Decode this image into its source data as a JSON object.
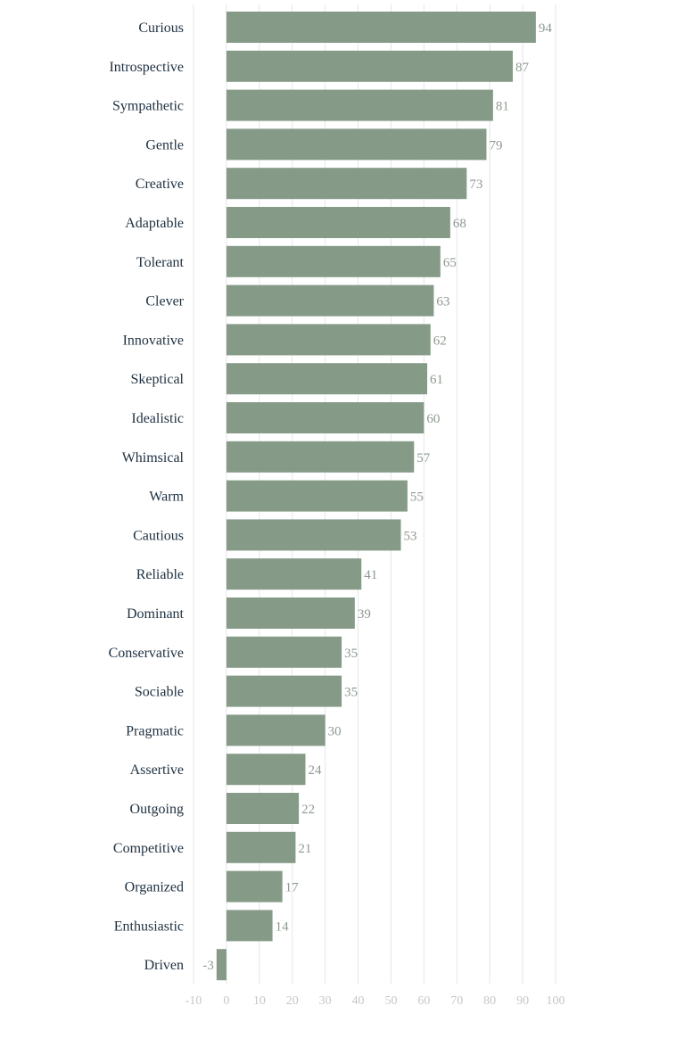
{
  "chart_data": {
    "type": "bar",
    "orientation": "horizontal",
    "categories": [
      "Curious",
      "Introspective",
      "Sympathetic",
      "Gentle",
      "Creative",
      "Adaptable",
      "Tolerant",
      "Clever",
      "Innovative",
      "Skeptical",
      "Idealistic",
      "Whimsical",
      "Warm",
      "Cautious",
      "Reliable",
      "Dominant",
      "Conservative",
      "Sociable",
      "Pragmatic",
      "Assertive",
      "Outgoing",
      "Competitive",
      "Organized",
      "Enthusiastic",
      "Driven"
    ],
    "values": [
      94,
      87,
      81,
      79,
      73,
      68,
      65,
      63,
      62,
      61,
      60,
      57,
      55,
      53,
      41,
      39,
      35,
      35,
      30,
      24,
      22,
      21,
      17,
      14,
      -3
    ],
    "xlim": [
      -10,
      100
    ],
    "xticks": [
      -10,
      0,
      10,
      20,
      30,
      40,
      50,
      60,
      70,
      80,
      90,
      100
    ],
    "bar_color": "#869a88",
    "grid": true,
    "title": "",
    "xlabel": "",
    "ylabel": ""
  }
}
